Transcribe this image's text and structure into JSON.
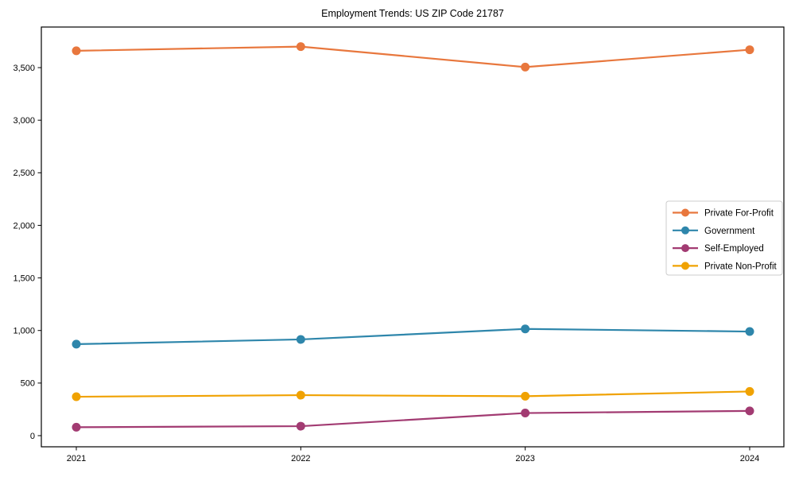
{
  "title": "Employment Trends: US ZIP Code 21787",
  "chart_data": {
    "type": "line",
    "title": "Employment Trends: US ZIP Code 21787",
    "xlabel": "",
    "ylabel": "",
    "x": [
      2021,
      2022,
      2023,
      2024
    ],
    "series": [
      {
        "name": "Private For-Profit",
        "color": "#e8773d",
        "values": [
          3660,
          3700,
          3505,
          3670
        ]
      },
      {
        "name": "Government",
        "color": "#2e86ab",
        "values": [
          870,
          915,
          1015,
          990
        ]
      },
      {
        "name": "Self-Employed",
        "color": "#a23b72",
        "values": [
          80,
          90,
          215,
          235
        ]
      },
      {
        "name": "Private Non-Profit",
        "color": "#f0a202",
        "values": [
          370,
          385,
          375,
          420
        ]
      }
    ],
    "yticks": [
      0,
      500,
      1000,
      1500,
      2000,
      2500,
      3000,
      3500
    ],
    "ylim": [
      -106,
      3886
    ],
    "grid": false,
    "legend_position": "center right",
    "marker": "circle",
    "axis_color": "#000000",
    "legend_border_color": "#cccccc"
  }
}
